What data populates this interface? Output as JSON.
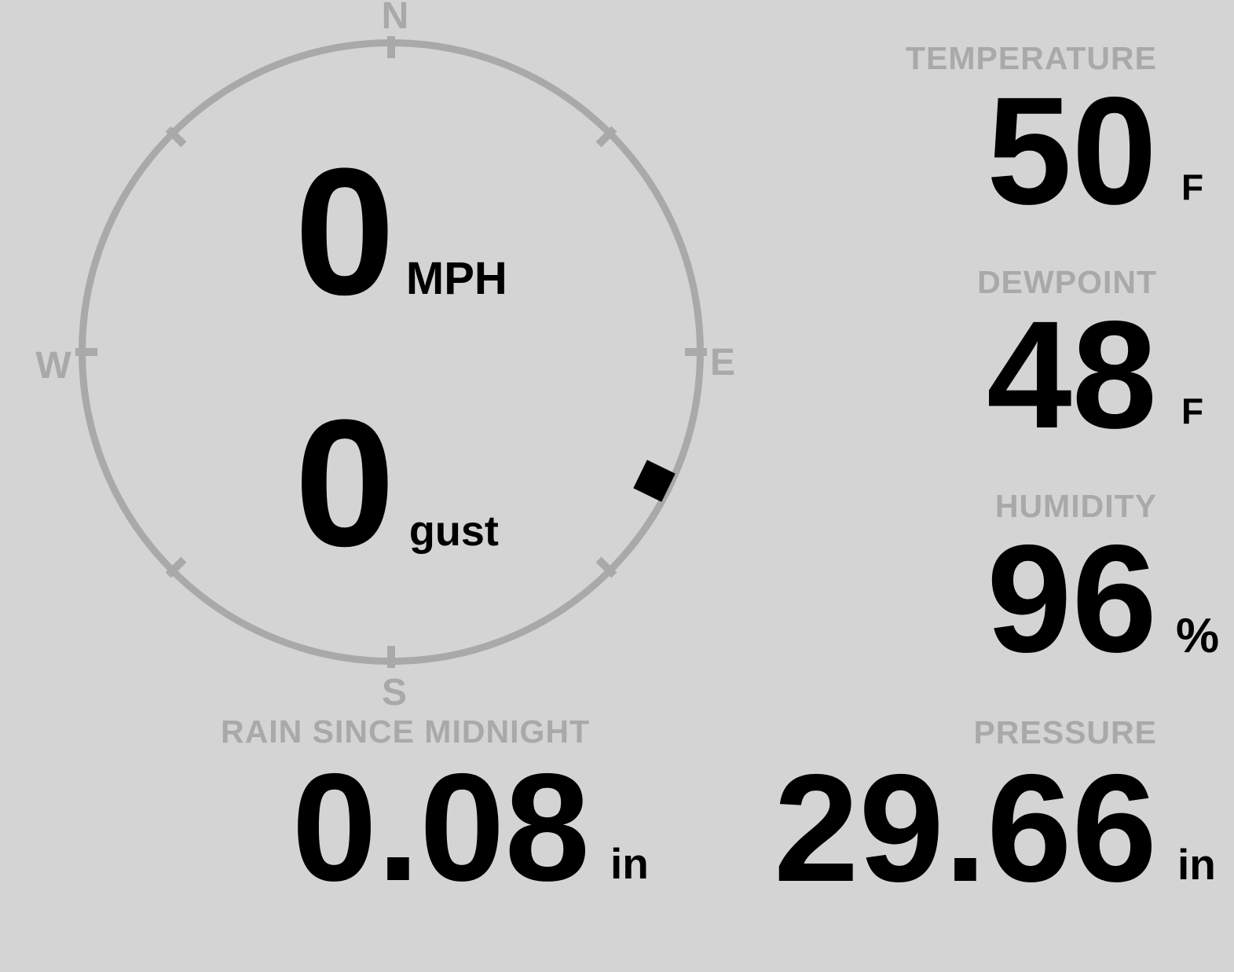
{
  "theme": {
    "background": "#d4d4d4",
    "muted": "#a9a9a9",
    "value_color": "#000000"
  },
  "wind": {
    "speed": "0",
    "speed_unit": "MPH",
    "gust": "0",
    "gust_unit": "gust",
    "direction_deg": 116,
    "cardinals": {
      "north": "N",
      "east": "E",
      "south": "S",
      "west": "W"
    }
  },
  "metrics": [
    {
      "id": "temperature",
      "label": "TEMPERATURE",
      "value": "50",
      "unit": "F"
    },
    {
      "id": "dewpoint",
      "label": "DEWPOINT",
      "value": "48",
      "unit": "F"
    },
    {
      "id": "humidity",
      "label": "HUMIDITY",
      "value": "96",
      "unit": "%"
    }
  ],
  "bottom_metrics": [
    {
      "id": "rain",
      "label": "RAIN SINCE MIDNIGHT",
      "value": "0.08",
      "unit": "in"
    },
    {
      "id": "pressure",
      "label": "PRESSURE",
      "value": "29.66",
      "unit": "in"
    }
  ]
}
